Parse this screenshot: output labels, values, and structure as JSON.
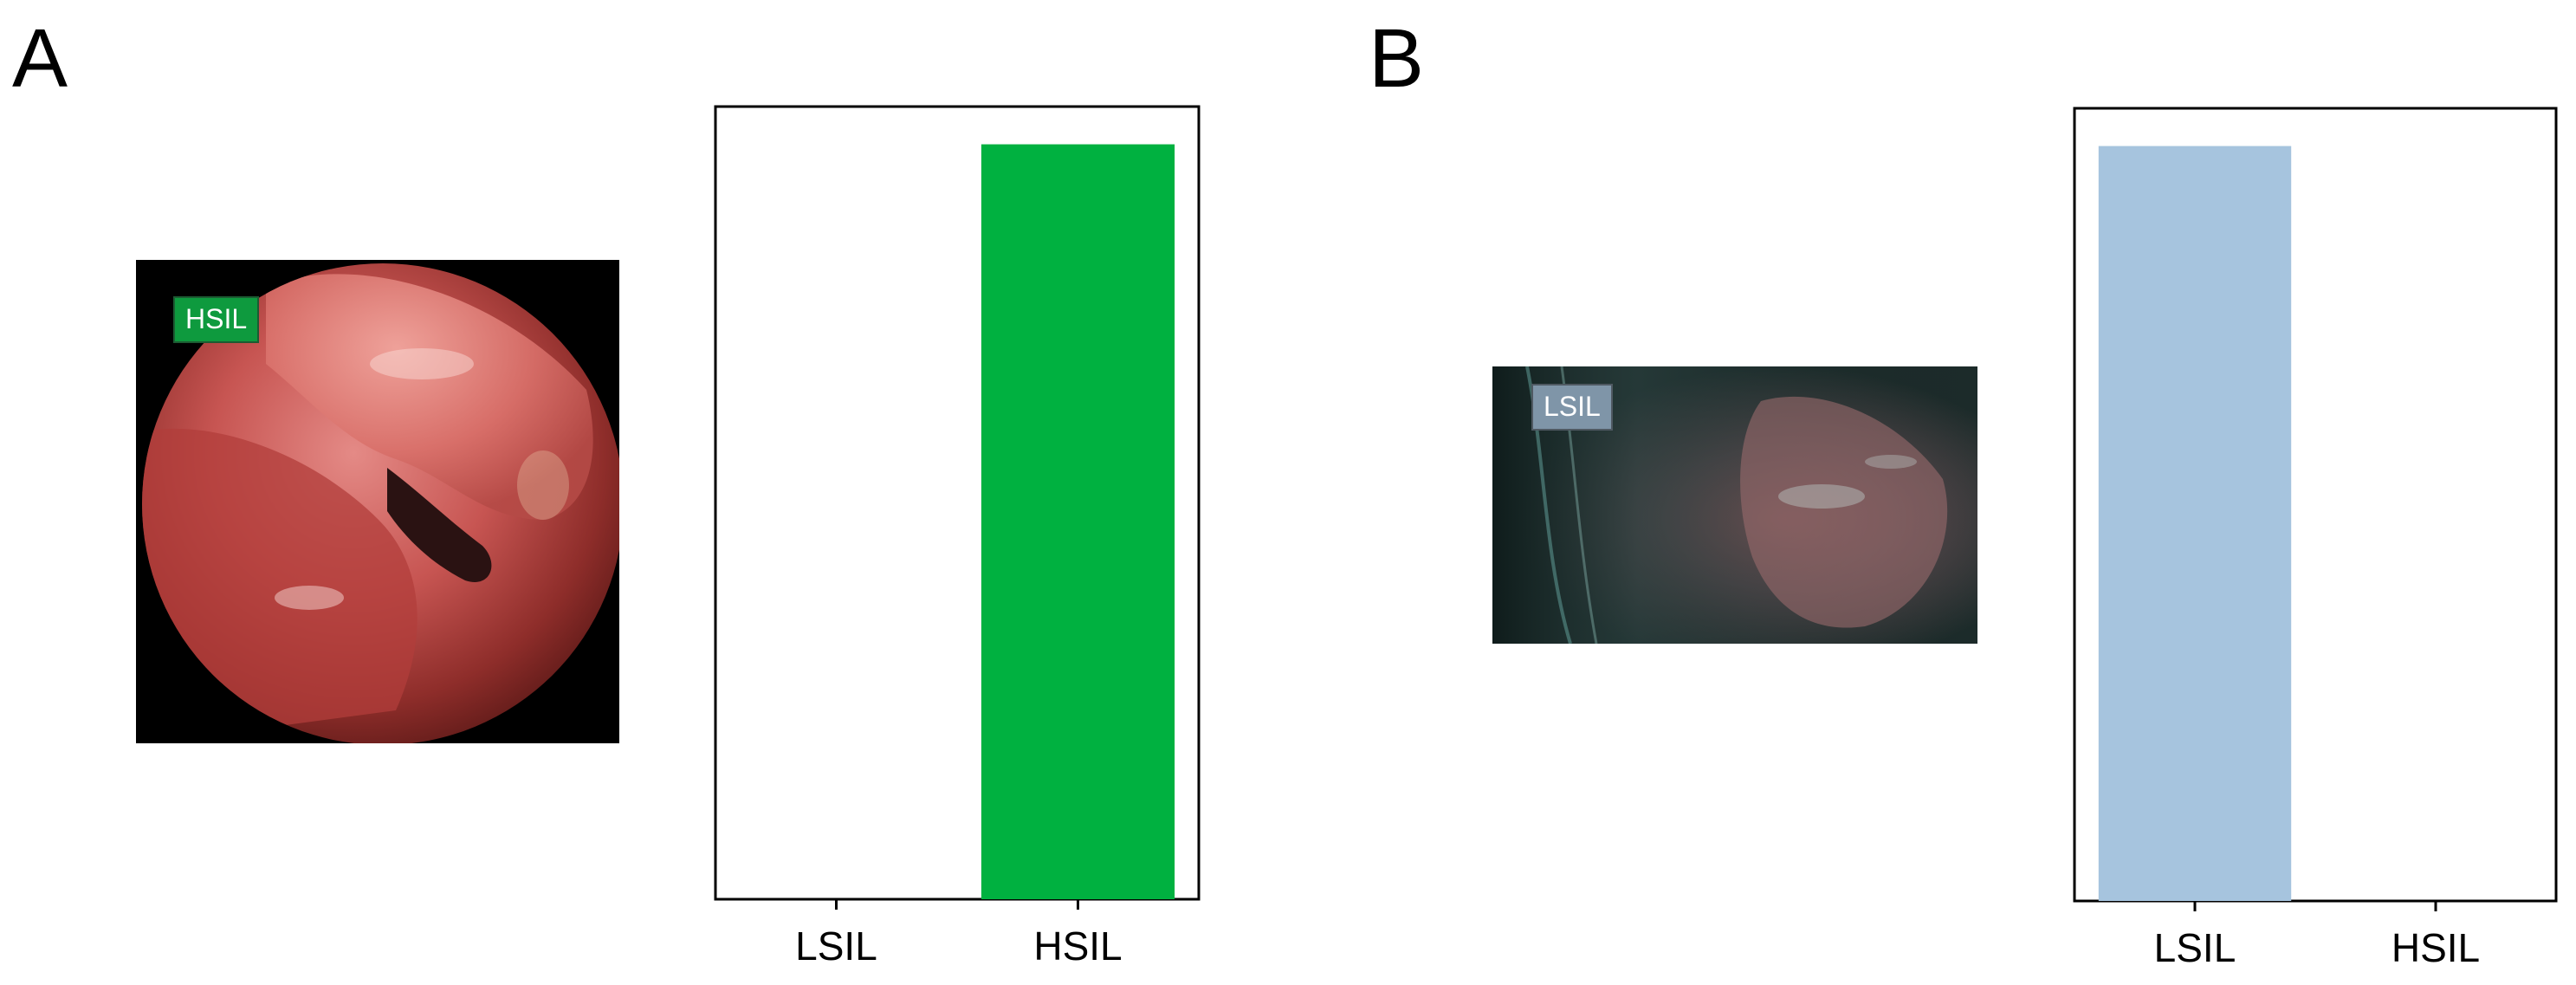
{
  "panels": [
    {
      "letter": "A",
      "photo_label": "HSIL",
      "photo_label_color": "#0e9a3e",
      "chart_data": {
        "type": "bar",
        "categories": [
          "LSIL",
          "HSIL"
        ],
        "values": [
          0,
          1
        ],
        "ylim": [
          0,
          1.05
        ],
        "bar_color": "#00b140",
        "grid": false,
        "legend": "none"
      }
    },
    {
      "letter": "B",
      "photo_label": "LSIL",
      "photo_label_color": "#7f95a8",
      "chart_data": {
        "type": "bar",
        "categories": [
          "LSIL",
          "HSIL"
        ],
        "values": [
          1,
          0
        ],
        "ylim": [
          0,
          1.05
        ],
        "bar_color": "#a6c4de",
        "grid": false,
        "legend": "none"
      }
    }
  ]
}
